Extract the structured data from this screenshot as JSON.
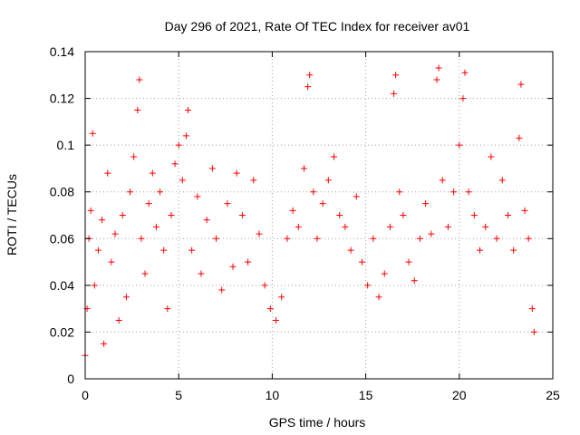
{
  "chart_data": {
    "type": "scatter",
    "title": "Day 296 of 2021, Rate Of TEC Index for receiver av01",
    "xlabel": "GPS time / hours",
    "ylabel": "ROTI / TECUs",
    "xlim": [
      0,
      25
    ],
    "ylim": [
      0,
      0.14
    ],
    "x_ticks": [
      0,
      5,
      10,
      15,
      20,
      25
    ],
    "x_tick_labels": [
      "0",
      "5",
      "10",
      "15",
      "20",
      "25"
    ],
    "y_ticks": [
      0,
      0.02,
      0.04,
      0.06,
      0.08,
      0.1,
      0.12,
      0.14
    ],
    "y_tick_labels": [
      "0",
      "0.02",
      "0.04",
      "0.06",
      "0.08",
      "0.1",
      "0.12",
      "0.14"
    ],
    "grid": true,
    "marker": "+",
    "color": "#ff0000",
    "series": [
      {
        "points": [
          [
            0.0,
            0.01
          ],
          [
            0.1,
            0.03
          ],
          [
            0.2,
            0.06
          ],
          [
            0.3,
            0.072
          ],
          [
            0.4,
            0.105
          ],
          [
            0.5,
            0.04
          ],
          [
            0.7,
            0.055
          ],
          [
            0.9,
            0.068
          ],
          [
            1.0,
            0.015
          ],
          [
            1.2,
            0.088
          ],
          [
            1.4,
            0.05
          ],
          [
            1.6,
            0.062
          ],
          [
            1.8,
            0.025
          ],
          [
            2.0,
            0.07
          ],
          [
            2.2,
            0.035
          ],
          [
            2.4,
            0.08
          ],
          [
            2.6,
            0.095
          ],
          [
            2.8,
            0.115
          ],
          [
            2.9,
            0.128
          ],
          [
            3.0,
            0.06
          ],
          [
            3.2,
            0.045
          ],
          [
            3.4,
            0.075
          ],
          [
            3.6,
            0.088
          ],
          [
            3.8,
            0.065
          ],
          [
            4.0,
            0.08
          ],
          [
            4.2,
            0.055
          ],
          [
            4.4,
            0.03
          ],
          [
            4.6,
            0.07
          ],
          [
            4.8,
            0.092
          ],
          [
            5.0,
            0.1
          ],
          [
            5.2,
            0.085
          ],
          [
            5.4,
            0.104
          ],
          [
            5.5,
            0.115
          ],
          [
            5.7,
            0.055
          ],
          [
            6.0,
            0.078
          ],
          [
            6.2,
            0.045
          ],
          [
            6.5,
            0.068
          ],
          [
            6.8,
            0.09
          ],
          [
            7.0,
            0.06
          ],
          [
            7.3,
            0.038
          ],
          [
            7.6,
            0.075
          ],
          [
            7.9,
            0.048
          ],
          [
            8.1,
            0.088
          ],
          [
            8.4,
            0.07
          ],
          [
            8.7,
            0.05
          ],
          [
            9.0,
            0.085
          ],
          [
            9.3,
            0.062
          ],
          [
            9.6,
            0.04
          ],
          [
            9.9,
            0.03
          ],
          [
            10.2,
            0.025
          ],
          [
            10.5,
            0.035
          ],
          [
            10.8,
            0.06
          ],
          [
            11.1,
            0.072
          ],
          [
            11.4,
            0.065
          ],
          [
            11.7,
            0.09
          ],
          [
            11.9,
            0.125
          ],
          [
            12.0,
            0.13
          ],
          [
            12.2,
            0.08
          ],
          [
            12.4,
            0.06
          ],
          [
            12.7,
            0.075
          ],
          [
            13.0,
            0.085
          ],
          [
            13.3,
            0.095
          ],
          [
            13.6,
            0.07
          ],
          [
            13.9,
            0.065
          ],
          [
            14.2,
            0.055
          ],
          [
            14.5,
            0.078
          ],
          [
            14.8,
            0.05
          ],
          [
            15.1,
            0.04
          ],
          [
            15.4,
            0.06
          ],
          [
            15.7,
            0.035
          ],
          [
            16.0,
            0.045
          ],
          [
            16.3,
            0.065
          ],
          [
            16.5,
            0.122
          ],
          [
            16.6,
            0.13
          ],
          [
            16.8,
            0.08
          ],
          [
            17.0,
            0.07
          ],
          [
            17.3,
            0.05
          ],
          [
            17.6,
            0.042
          ],
          [
            17.9,
            0.06
          ],
          [
            18.2,
            0.075
          ],
          [
            18.5,
            0.062
          ],
          [
            18.8,
            0.128
          ],
          [
            18.9,
            0.133
          ],
          [
            19.1,
            0.085
          ],
          [
            19.4,
            0.065
          ],
          [
            19.7,
            0.08
          ],
          [
            20.0,
            0.1
          ],
          [
            20.2,
            0.12
          ],
          [
            20.3,
            0.131
          ],
          [
            20.5,
            0.08
          ],
          [
            20.8,
            0.07
          ],
          [
            21.1,
            0.055
          ],
          [
            21.4,
            0.065
          ],
          [
            21.7,
            0.095
          ],
          [
            22.0,
            0.06
          ],
          [
            22.3,
            0.085
          ],
          [
            22.6,
            0.07
          ],
          [
            22.9,
            0.055
          ],
          [
            23.2,
            0.103
          ],
          [
            23.3,
            0.126
          ],
          [
            23.5,
            0.072
          ],
          [
            23.7,
            0.06
          ],
          [
            23.9,
            0.03
          ],
          [
            24.0,
            0.02
          ]
        ]
      }
    ]
  }
}
